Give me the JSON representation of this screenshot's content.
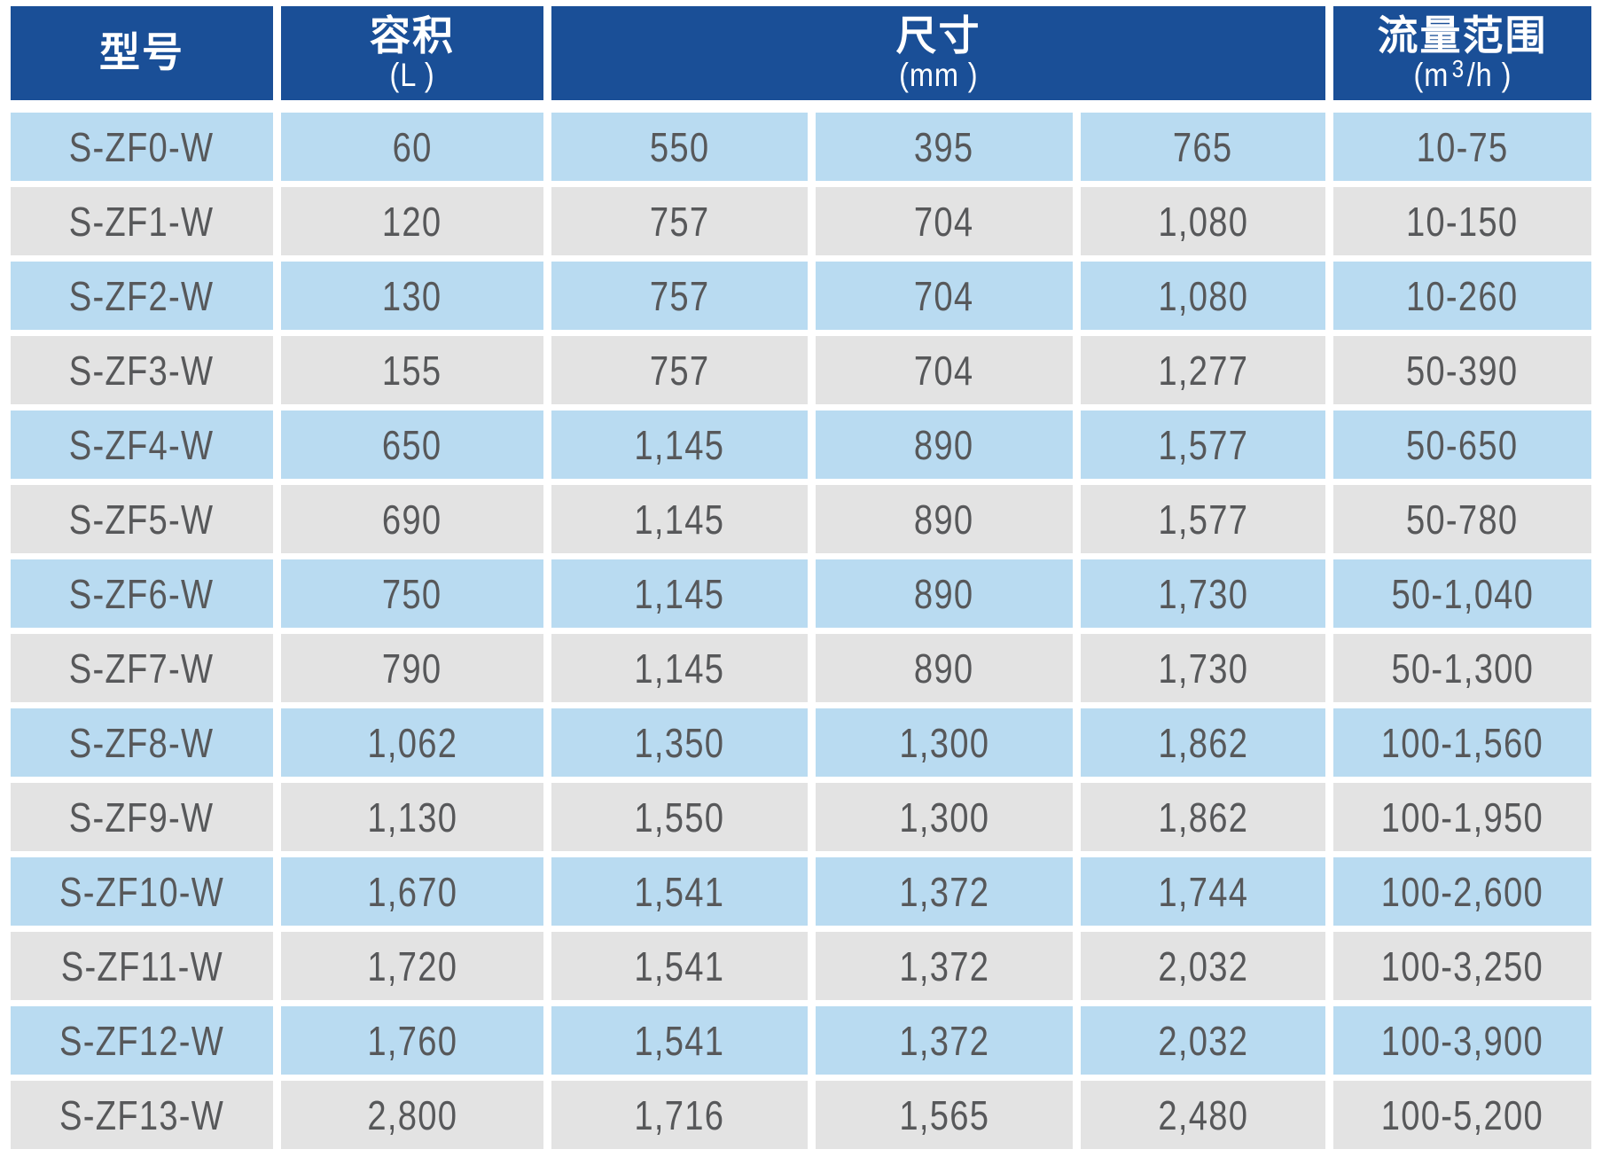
{
  "chart_data": {
    "type": "table",
    "columns": [
      {
        "label": "型号",
        "unit": ""
      },
      {
        "label": "容积",
        "unit": "(L )"
      },
      {
        "label": "尺寸",
        "unit": "(mm )",
        "span": 3
      },
      {
        "label": "流量范围",
        "unit_prefix": "(m",
        "unit_sup": "3",
        "unit_suffix": "/h )"
      }
    ],
    "rows": [
      [
        "S-ZF0-W",
        "60",
        "550",
        "395",
        "765",
        "10-75"
      ],
      [
        "S-ZF1-W",
        "120",
        "757",
        "704",
        "1,080",
        "10-150"
      ],
      [
        "S-ZF2-W",
        "130",
        "757",
        "704",
        "1,080",
        "10-260"
      ],
      [
        "S-ZF3-W",
        "155",
        "757",
        "704",
        "1,277",
        "50-390"
      ],
      [
        "S-ZF4-W",
        "650",
        "1,145",
        "890",
        "1,577",
        "50-650"
      ],
      [
        "S-ZF5-W",
        "690",
        "1,145",
        "890",
        "1,577",
        "50-780"
      ],
      [
        "S-ZF6-W",
        "750",
        "1,145",
        "890",
        "1,730",
        "50-1,040"
      ],
      [
        "S-ZF7-W",
        "790",
        "1,145",
        "890",
        "1,730",
        "50-1,300"
      ],
      [
        "S-ZF8-W",
        "1,062",
        "1,350",
        "1,300",
        "1,862",
        "100-1,560"
      ],
      [
        "S-ZF9-W",
        "1,130",
        "1,550",
        "1,300",
        "1,862",
        "100-1,950"
      ],
      [
        "S-ZF10-W",
        "1,670",
        "1,541",
        "1,372",
        "1,744",
        "100-2,600"
      ],
      [
        "S-ZF11-W",
        "1,720",
        "1,541",
        "1,372",
        "2,032",
        "100-3,250"
      ],
      [
        "S-ZF12-W",
        "1,760",
        "1,541",
        "1,372",
        "2,032",
        "100-3,900"
      ],
      [
        "S-ZF13-W",
        "2,800",
        "1,716",
        "1,565",
        "2,480",
        "100-5,200"
      ]
    ],
    "layout": {
      "row_striping": [
        "light-blue",
        "light-gray"
      ],
      "dimensions_subcolumns": 3
    }
  },
  "colors": {
    "header_bg": "#1a4f97",
    "header_text": "#ffffff",
    "row_blue": "#b9dbf1",
    "row_gray": "#e3e3e3",
    "body_text": "#57585a",
    "background": "#ffffff"
  }
}
